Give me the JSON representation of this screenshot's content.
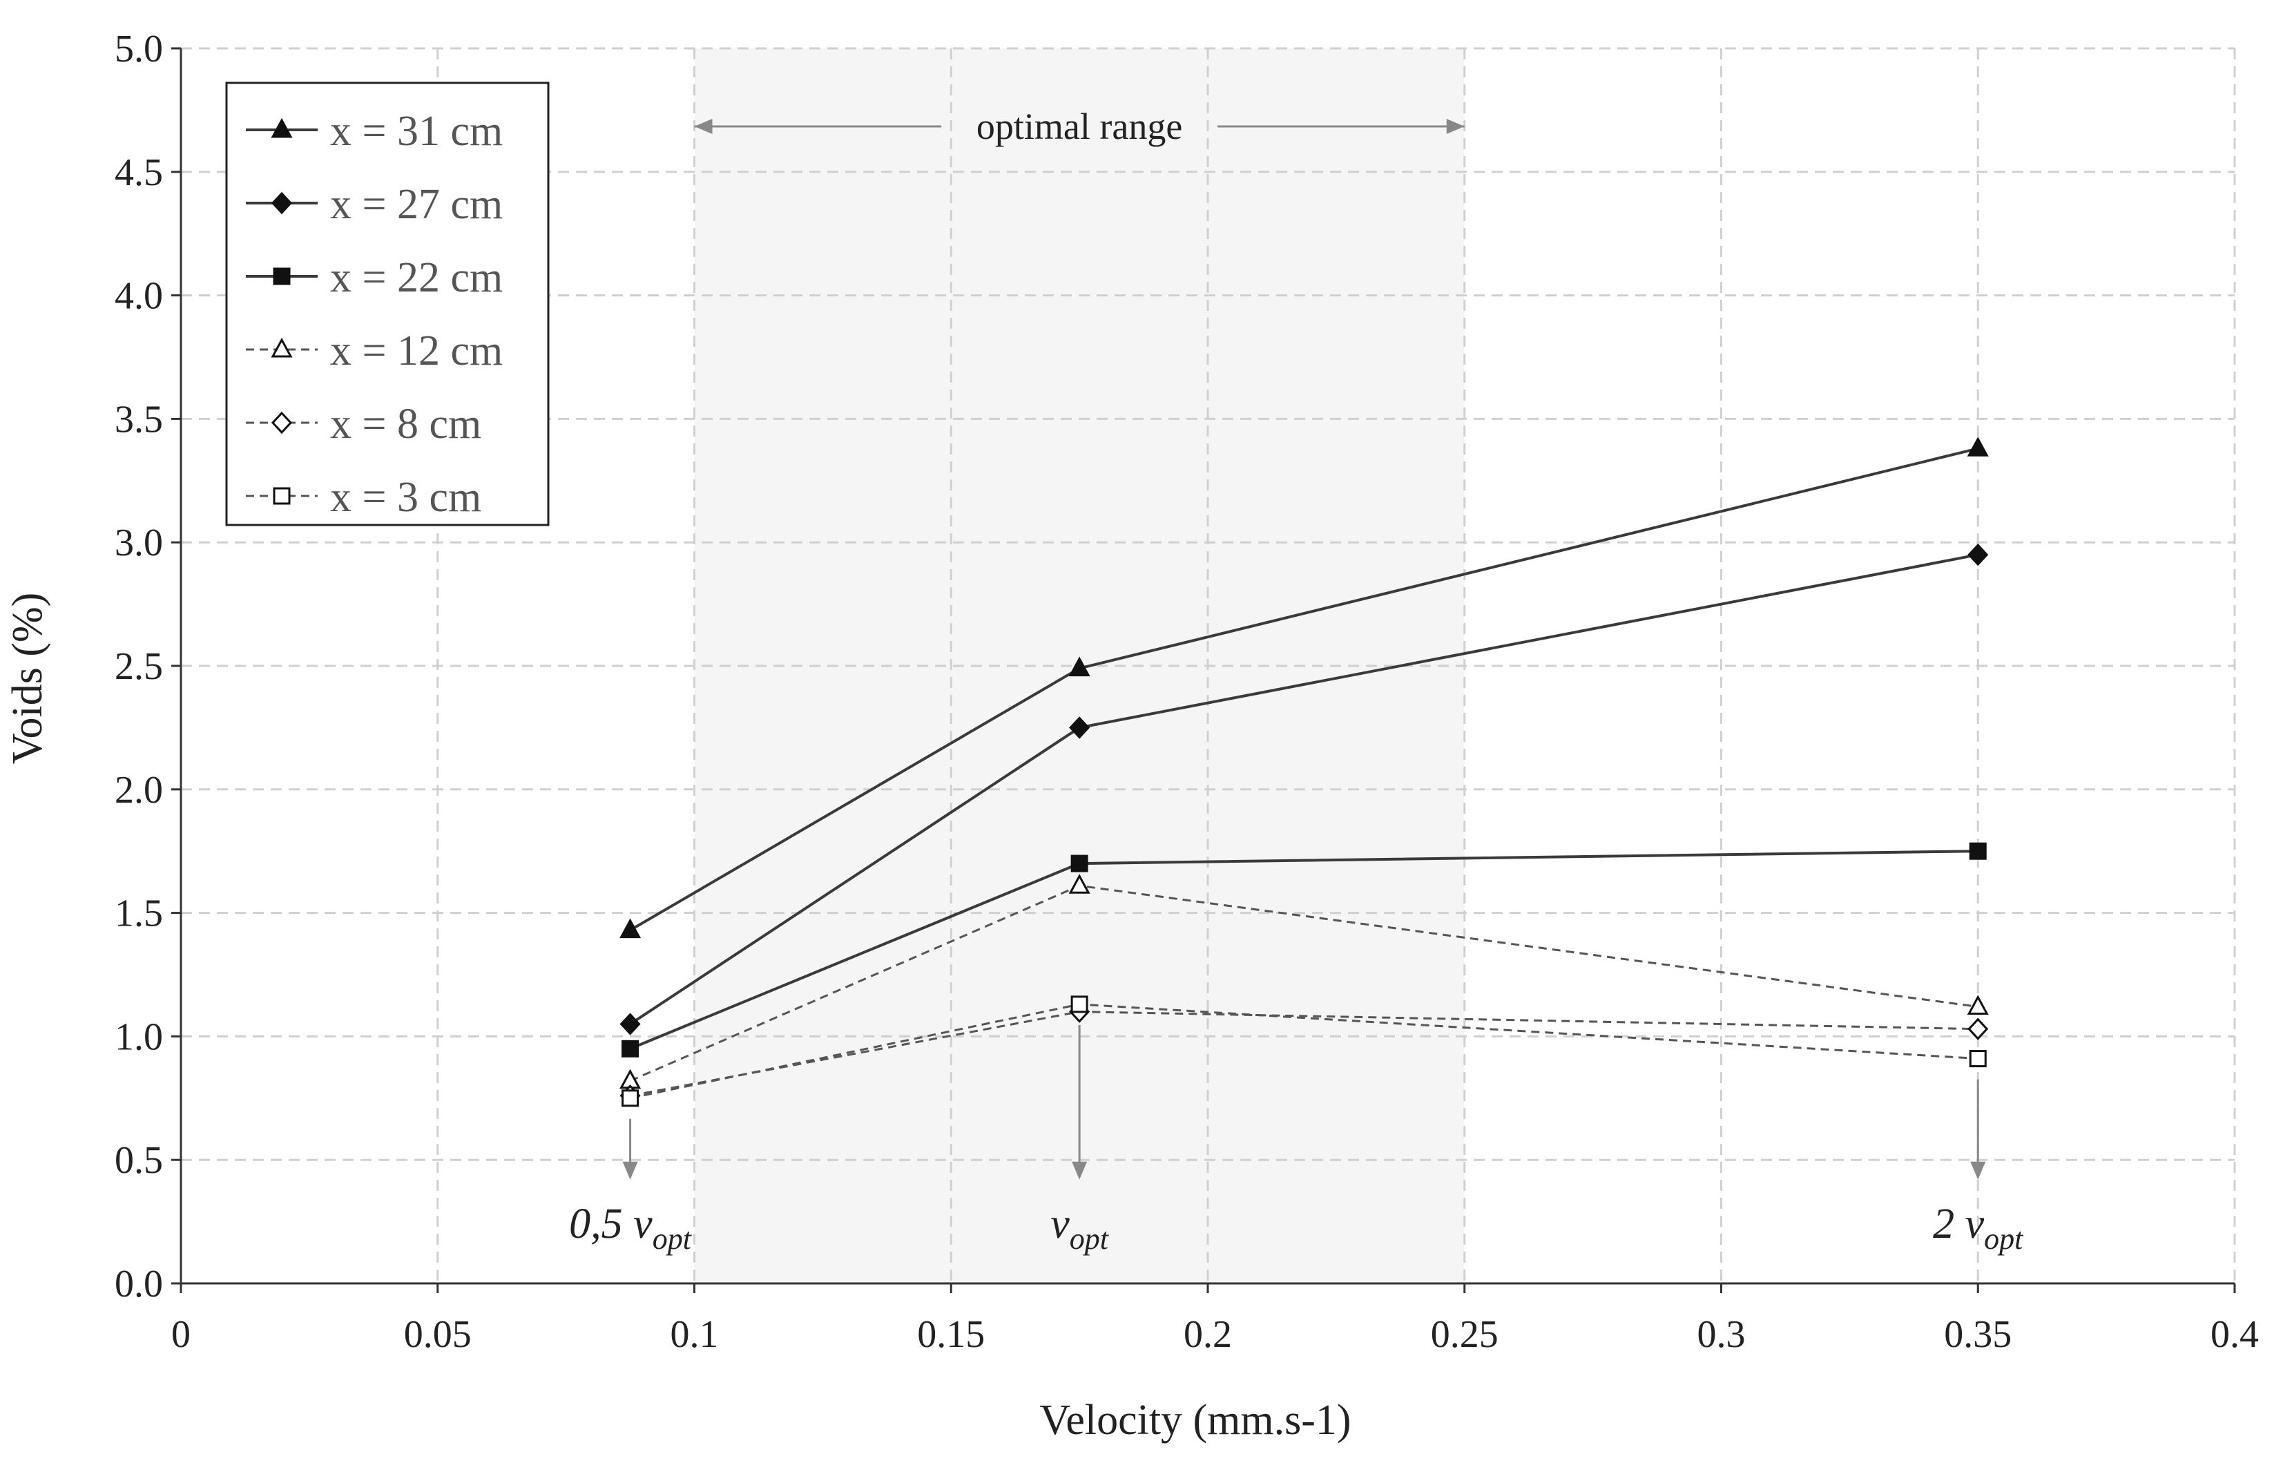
{
  "chart_data": {
    "type": "line",
    "title": "",
    "xlabel": "Velocity (mm.s-1)",
    "ylabel": "Voids (%)",
    "xlim": [
      0,
      0.4
    ],
    "ylim": [
      0,
      5.0
    ],
    "x_ticks": [
      0,
      0.05,
      0.1,
      0.15,
      0.2,
      0.25,
      0.3,
      0.35,
      0.4
    ],
    "x_tick_labels": [
      "0",
      "0.05",
      "0.1",
      "0.15",
      "0.2",
      "0.25",
      "0.3",
      "0.35",
      "0.4"
    ],
    "y_ticks": [
      0,
      0.5,
      1.0,
      1.5,
      2.0,
      2.5,
      3.0,
      3.5,
      4.0,
      4.5,
      5.0
    ],
    "y_tick_labels": [
      "0.0",
      "0.5",
      "1.0",
      "1.5",
      "2.0",
      "2.5",
      "3.0",
      "3.5",
      "4.0",
      "4.5",
      "5.0"
    ],
    "grid": true,
    "legend_position": "top-left",
    "x": [
      0.0875,
      0.175,
      0.35
    ],
    "series": [
      {
        "name": "x = 31 cm",
        "values": [
          1.43,
          2.49,
          3.38
        ],
        "marker": "triangle",
        "filled": true,
        "dashed": false
      },
      {
        "name": "x = 27 cm",
        "values": [
          1.05,
          2.25,
          2.95
        ],
        "marker": "diamond",
        "filled": true,
        "dashed": false
      },
      {
        "name": "x = 22 cm",
        "values": [
          0.95,
          1.7,
          1.75
        ],
        "marker": "square",
        "filled": true,
        "dashed": false
      },
      {
        "name": "x = 12 cm",
        "values": [
          0.82,
          1.61,
          1.12
        ],
        "marker": "triangle",
        "filled": false,
        "dashed": true
      },
      {
        "name": "x = 8 cm",
        "values": [
          0.76,
          1.1,
          1.03
        ],
        "marker": "diamond",
        "filled": false,
        "dashed": true
      },
      {
        "name": "x = 3 cm",
        "values": [
          0.75,
          1.13,
          0.91
        ],
        "marker": "square",
        "filled": false,
        "dashed": true
      }
    ],
    "optimal_range": {
      "label": "optimal range",
      "x_start": 0.1,
      "x_end": 0.25
    },
    "annotations": [
      {
        "x": 0.0875,
        "prefix": "0,5 v",
        "sub": "opt",
        "arrow_from": 0.75
      },
      {
        "x": 0.175,
        "prefix": "v",
        "sub": "opt",
        "arrow_from": 1.13
      },
      {
        "x": 0.35,
        "prefix": "2 v",
        "sub": "opt",
        "arrow_from": 0.91
      }
    ],
    "colors": {
      "solid_line": "#3a3a3a",
      "dashed_line": "#555555",
      "marker": "#111111",
      "grid": "#d0d0d0",
      "shade": "#f5f5f5",
      "arrow": "#888888"
    }
  }
}
